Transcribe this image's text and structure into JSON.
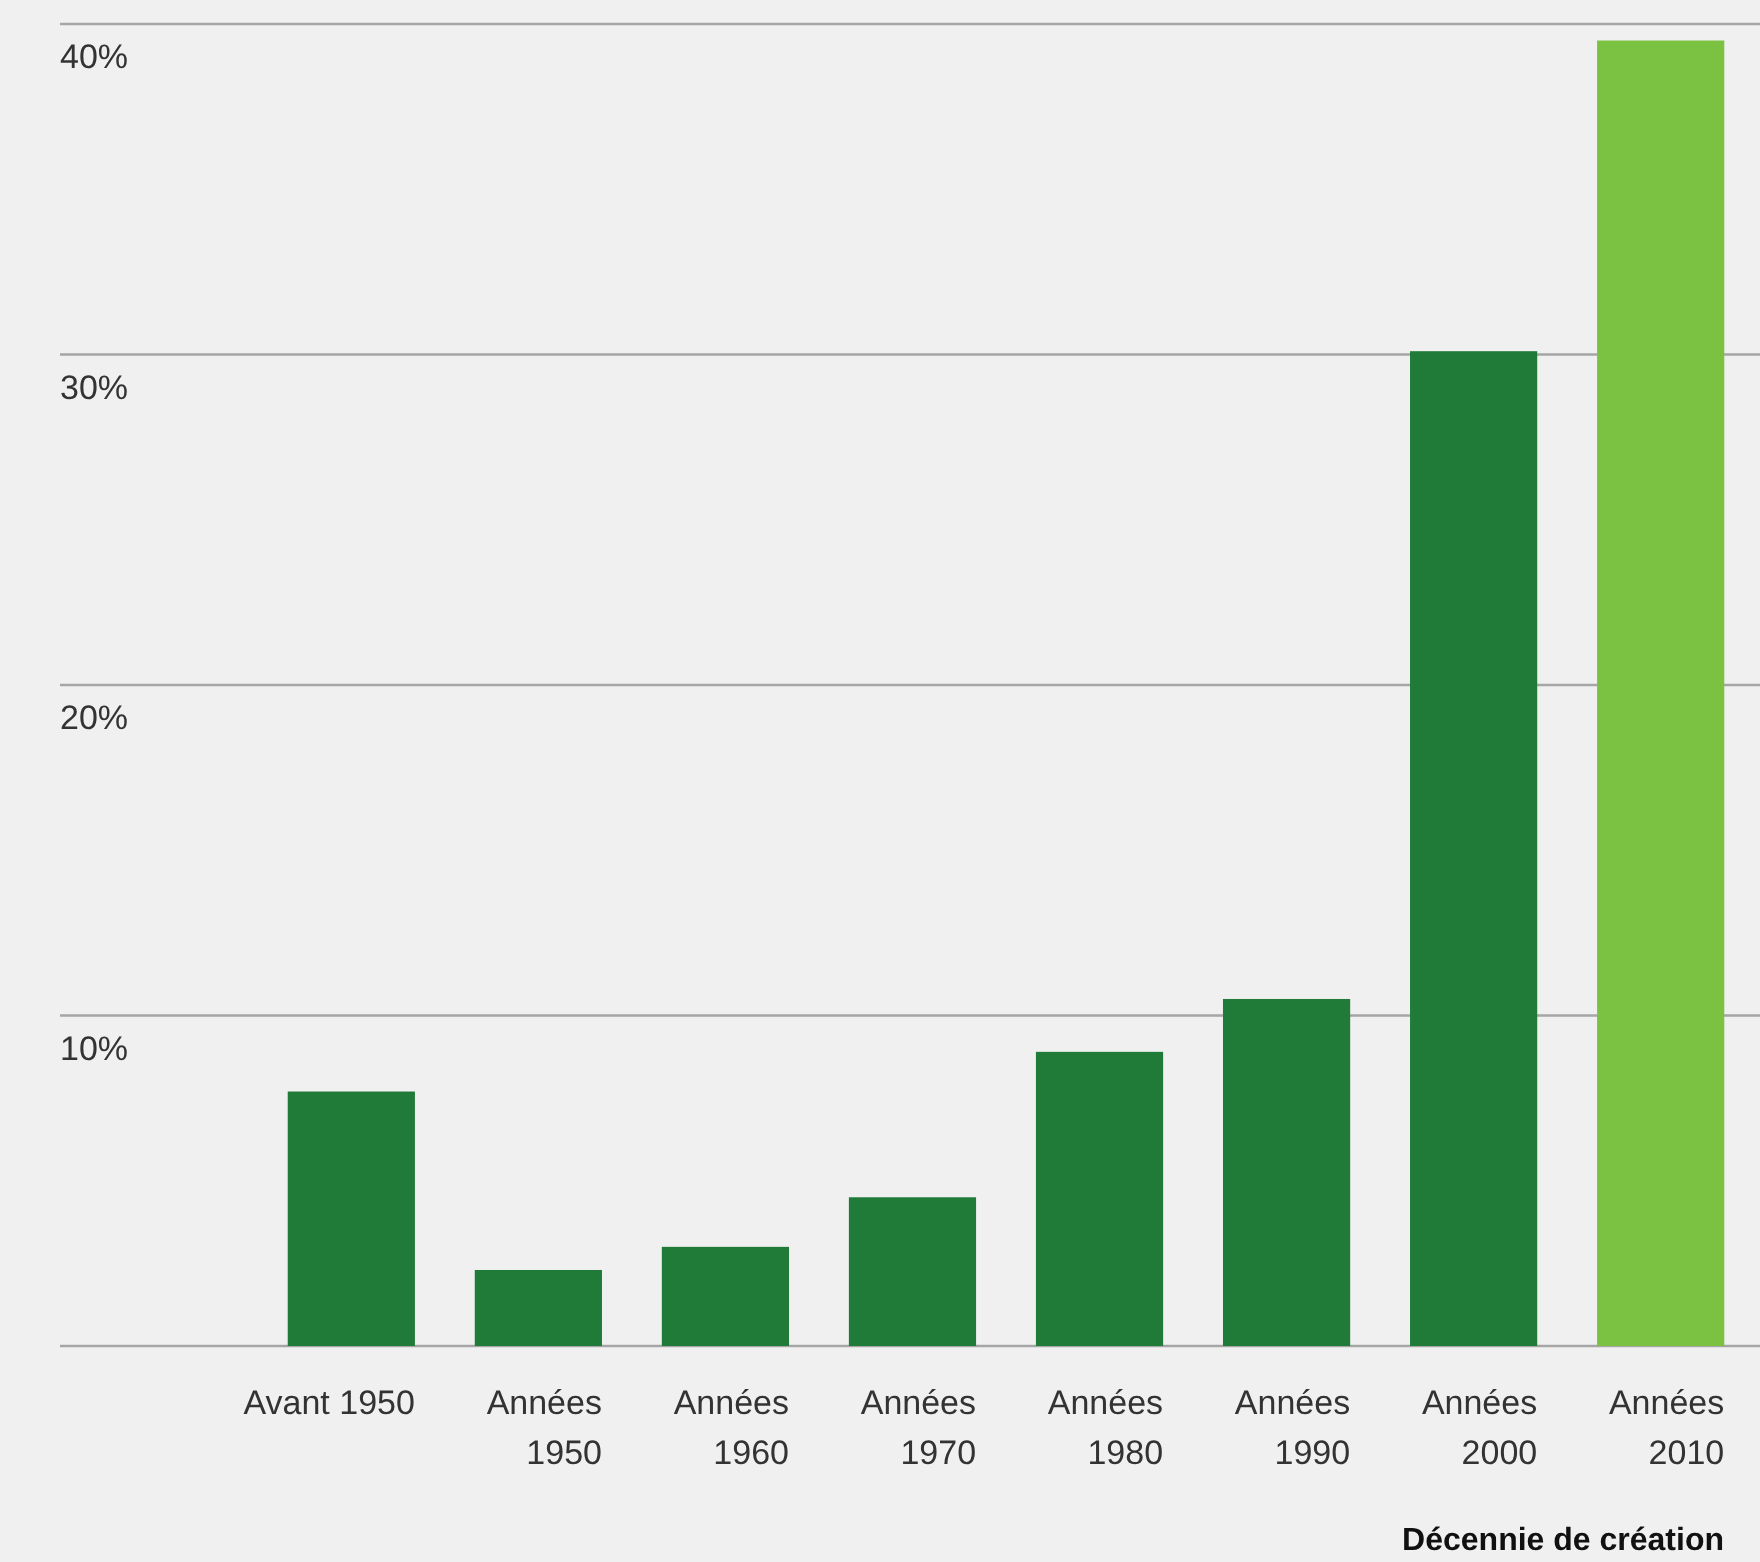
{
  "chart_data": {
    "type": "bar",
    "xlabel": "Décennie de création",
    "categories": [
      "Avant 1950",
      "Années 1950",
      "Années 1960",
      "Années 1970",
      "Années 1980",
      "Années 1990",
      "Années 2000",
      "Années 2010"
    ],
    "values": [
      7.7,
      2.3,
      3.0,
      4.5,
      8.9,
      10.5,
      30.1,
      39.5
    ],
    "colors": [
      "#217b38",
      "#217b38",
      "#217b38",
      "#217b38",
      "#217b38",
      "#217b38",
      "#217b38",
      "#7cc242"
    ],
    "ylim": [
      0,
      40
    ],
    "yticks": [
      {
        "value": 0,
        "label": null
      },
      {
        "value": 10,
        "label": "10%"
      },
      {
        "value": 20,
        "label": "20%"
      },
      {
        "value": 30,
        "label": "30%"
      },
      {
        "value": 40,
        "label": "40%"
      }
    ],
    "grid": "y"
  }
}
